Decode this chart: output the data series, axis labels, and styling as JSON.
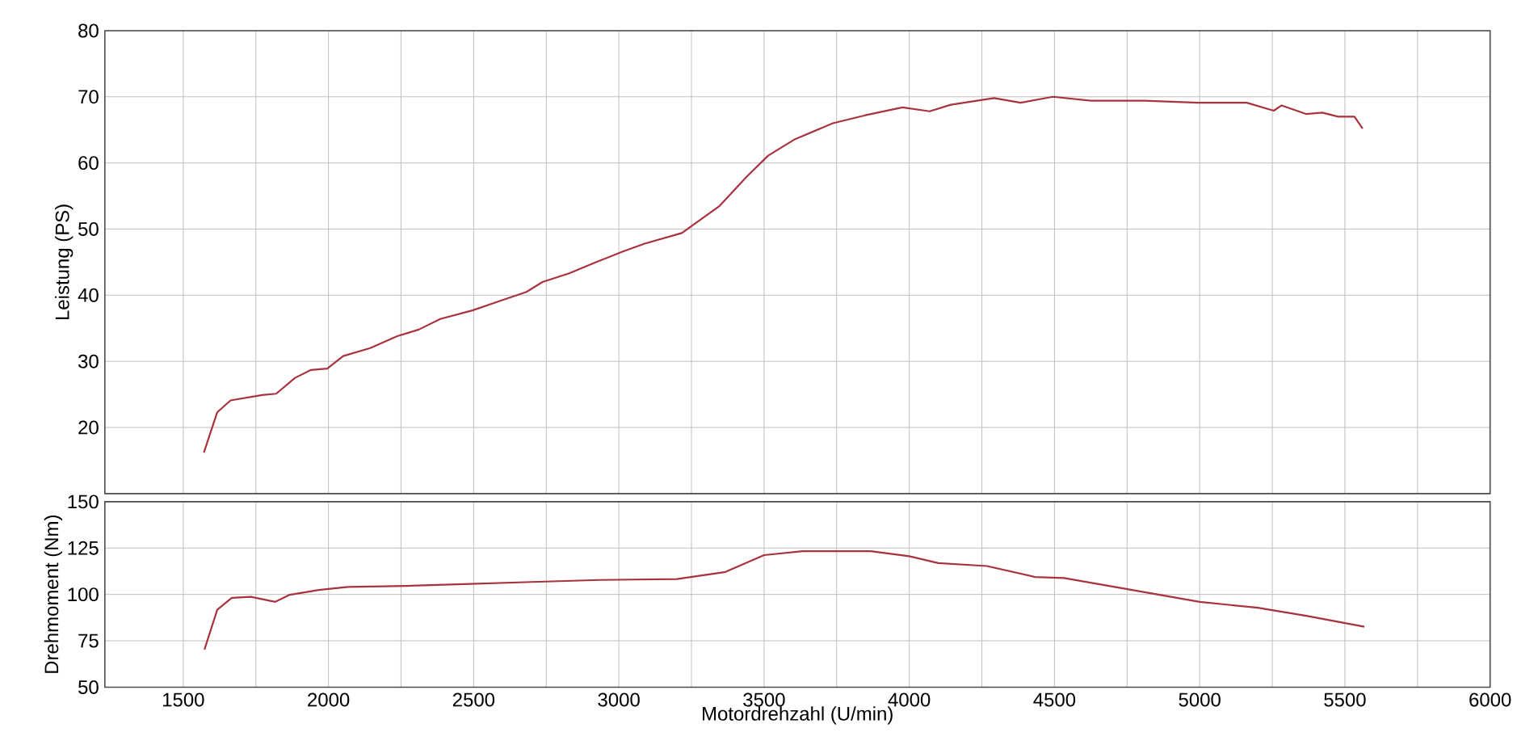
{
  "chart_data": [
    {
      "type": "line",
      "ylabel": "Leistung (PS)",
      "tick_labels": "y",
      "grid": true,
      "xlim": [
        1230,
        6000
      ],
      "ylim": [
        10,
        80
      ],
      "yticks": [
        20,
        30,
        40,
        50,
        60,
        70,
        80
      ],
      "xticks": [
        1500,
        {
          "value": 1750,
          "label": null
        },
        2000,
        {
          "value": 2250,
          "label": null
        },
        2500,
        {
          "value": 2750,
          "label": null
        },
        3000,
        {
          "value": 3250,
          "label": null
        },
        3500,
        {
          "value": 3750,
          "label": null
        },
        4000,
        {
          "value": 4250,
          "label": null
        },
        4500,
        {
          "value": 4750,
          "label": null
        },
        5000,
        {
          "value": 5250,
          "label": null
        },
        5500,
        {
          "value": 5750,
          "label": null
        },
        6000
      ],
      "series": [
        {
          "color": "#a8323e",
          "x": [
            1571,
            1617,
            1663,
            1772,
            1820,
            1885,
            1940,
            1996,
            2051,
            2144,
            2237,
            2311,
            2385,
            2496,
            2588,
            2682,
            2737,
            2829,
            2921,
            3014,
            3089,
            3217,
            3347,
            3440,
            3514,
            3607,
            3737,
            3848,
            3977,
            4070,
            4143,
            4292,
            4383,
            4495,
            4625,
            4810,
            4995,
            5162,
            5255,
            5282,
            5366,
            5422,
            5477,
            5533,
            5561
          ],
          "values": [
            16.2,
            22.3,
            24.1,
            24.9,
            25.1,
            27.5,
            28.7,
            28.9,
            30.8,
            32.0,
            33.8,
            34.8,
            36.4,
            37.7,
            39.1,
            40.5,
            42.0,
            43.3,
            45.0,
            46.6,
            47.8,
            49.4,
            53.5,
            57.9,
            61.1,
            63.6,
            66.0,
            67.2,
            68.4,
            67.8,
            68.8,
            69.8,
            69.1,
            70.0,
            69.4,
            69.4,
            69.1,
            69.1,
            67.9,
            68.7,
            67.4,
            67.6,
            67.0,
            67.0,
            65.2
          ]
        }
      ]
    },
    {
      "type": "line",
      "xlabel": "Motordrehzahl (U/min)",
      "ylabel": "Drehmoment (Nm)",
      "grid": true,
      "xlim": [
        1230,
        6000
      ],
      "ylim": [
        50,
        150
      ],
      "yticks": [
        50,
        75,
        100,
        125,
        150
      ],
      "xticks": [
        1500,
        {
          "value": 1750,
          "label": null
        },
        2000,
        {
          "value": 2250,
          "label": null
        },
        2500,
        {
          "value": 2750,
          "label": null
        },
        3000,
        {
          "value": 3250,
          "label": null
        },
        3500,
        {
          "value": 3750,
          "label": null
        },
        4000,
        {
          "value": 4250,
          "label": null
        },
        4500,
        {
          "value": 4750,
          "label": null
        },
        5000,
        {
          "value": 5250,
          "label": null
        },
        5500,
        {
          "value": 5750,
          "label": null
        },
        6000
      ],
      "series": [
        {
          "color": "#a8323e",
          "x": [
            1573,
            1617,
            1667,
            1733,
            1817,
            1867,
            1967,
            2067,
            2267,
            2467,
            2700,
            2933,
            3200,
            3367,
            3500,
            3633,
            3867,
            4000,
            4100,
            4267,
            4433,
            4533,
            4767,
            5000,
            5200,
            5367,
            5567
          ],
          "values": [
            70.3,
            91.7,
            98.2,
            98.7,
            96.0,
            99.8,
            102.4,
            104.0,
            104.6,
            105.6,
            106.7,
            107.8,
            108.3,
            112.1,
            121.2,
            123.3,
            123.3,
            120.6,
            116.9,
            115.3,
            109.4,
            108.8,
            102.4,
            96.0,
            92.8,
            88.5,
            82.6
          ]
        }
      ]
    }
  ]
}
